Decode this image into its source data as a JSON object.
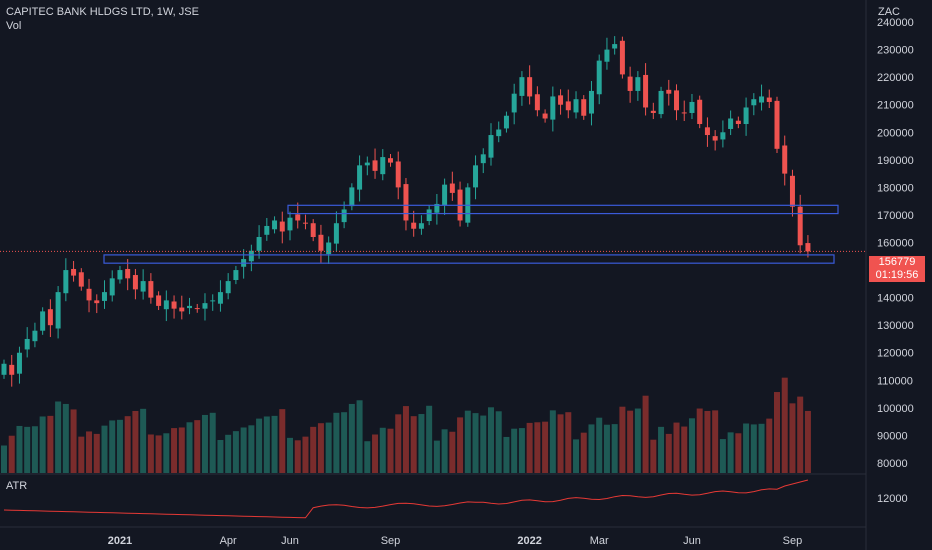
{
  "header": {
    "symbol_line": "CAPITEC BANK HLDGS LTD, 1W, JSE",
    "volume_label": "Vol",
    "atr_label": "ATR",
    "currency": "ZAC"
  },
  "last_price": {
    "value": "156779",
    "countdown": "01:19:56",
    "color": "#f05350"
  },
  "colors": {
    "up": "#26a69a",
    "down": "#ef5350",
    "vol_up": "#1e5a55",
    "vol_down": "#7a2c2c",
    "box": "#3a5bd9",
    "atr_line": "#e53935"
  },
  "chart_data": [
    {
      "type": "candlestick",
      "title": "CAPITEC BANK HLDGS LTD, 1W, JSE",
      "x_ticks": [
        "2021",
        "Apr",
        "Jun",
        "Sep",
        "2022",
        "Mar",
        "Jun",
        "Sep"
      ],
      "y_ticks": [
        80000,
        90000,
        100000,
        110000,
        120000,
        130000,
        140000,
        150000,
        160000,
        170000,
        180000,
        190000,
        200000,
        210000,
        220000,
        230000,
        240000
      ],
      "y_unit": "ZAC",
      "ylim": [
        76000,
        248000
      ],
      "zones": [
        {
          "low": 170500,
          "high": 173500
        },
        {
          "low": 152500,
          "high": 155500
        }
      ],
      "close_series": [
        116000,
        112000,
        120000,
        125000,
        128000,
        135000,
        130000,
        142000,
        150000,
        148000,
        144000,
        139000,
        138000,
        142000,
        147000,
        150000,
        147000,
        143000,
        146000,
        140000,
        137000,
        139000,
        136000,
        135000,
        137000,
        136000,
        138000,
        139000,
        142000,
        146000,
        150000,
        154000,
        157000,
        162000,
        166000,
        168000,
        164000,
        169000,
        168000,
        167000,
        162000,
        157000,
        160000,
        167000,
        172000,
        180000,
        188000,
        189000,
        186000,
        191000,
        189000,
        180000,
        168000,
        165000,
        167000,
        172000,
        174000,
        181000,
        178000,
        168000,
        180000,
        188000,
        192000,
        199000,
        201000,
        206000,
        214000,
        220000,
        213000,
        208000,
        205000,
        213000,
        210000,
        208000,
        212000,
        206000,
        215000,
        226000,
        230000,
        232000,
        221000,
        215000,
        220000,
        209000,
        207000,
        215000,
        214000,
        208000,
        207000,
        211000,
        203000,
        199000,
        197000,
        200000,
        205000,
        203000,
        209000,
        212000,
        213000,
        211000,
        194000,
        185000,
        173000,
        159000,
        156779
      ],
      "volume_ylim": [
        0,
        120
      ],
      "atr_value": 12000
    }
  ]
}
